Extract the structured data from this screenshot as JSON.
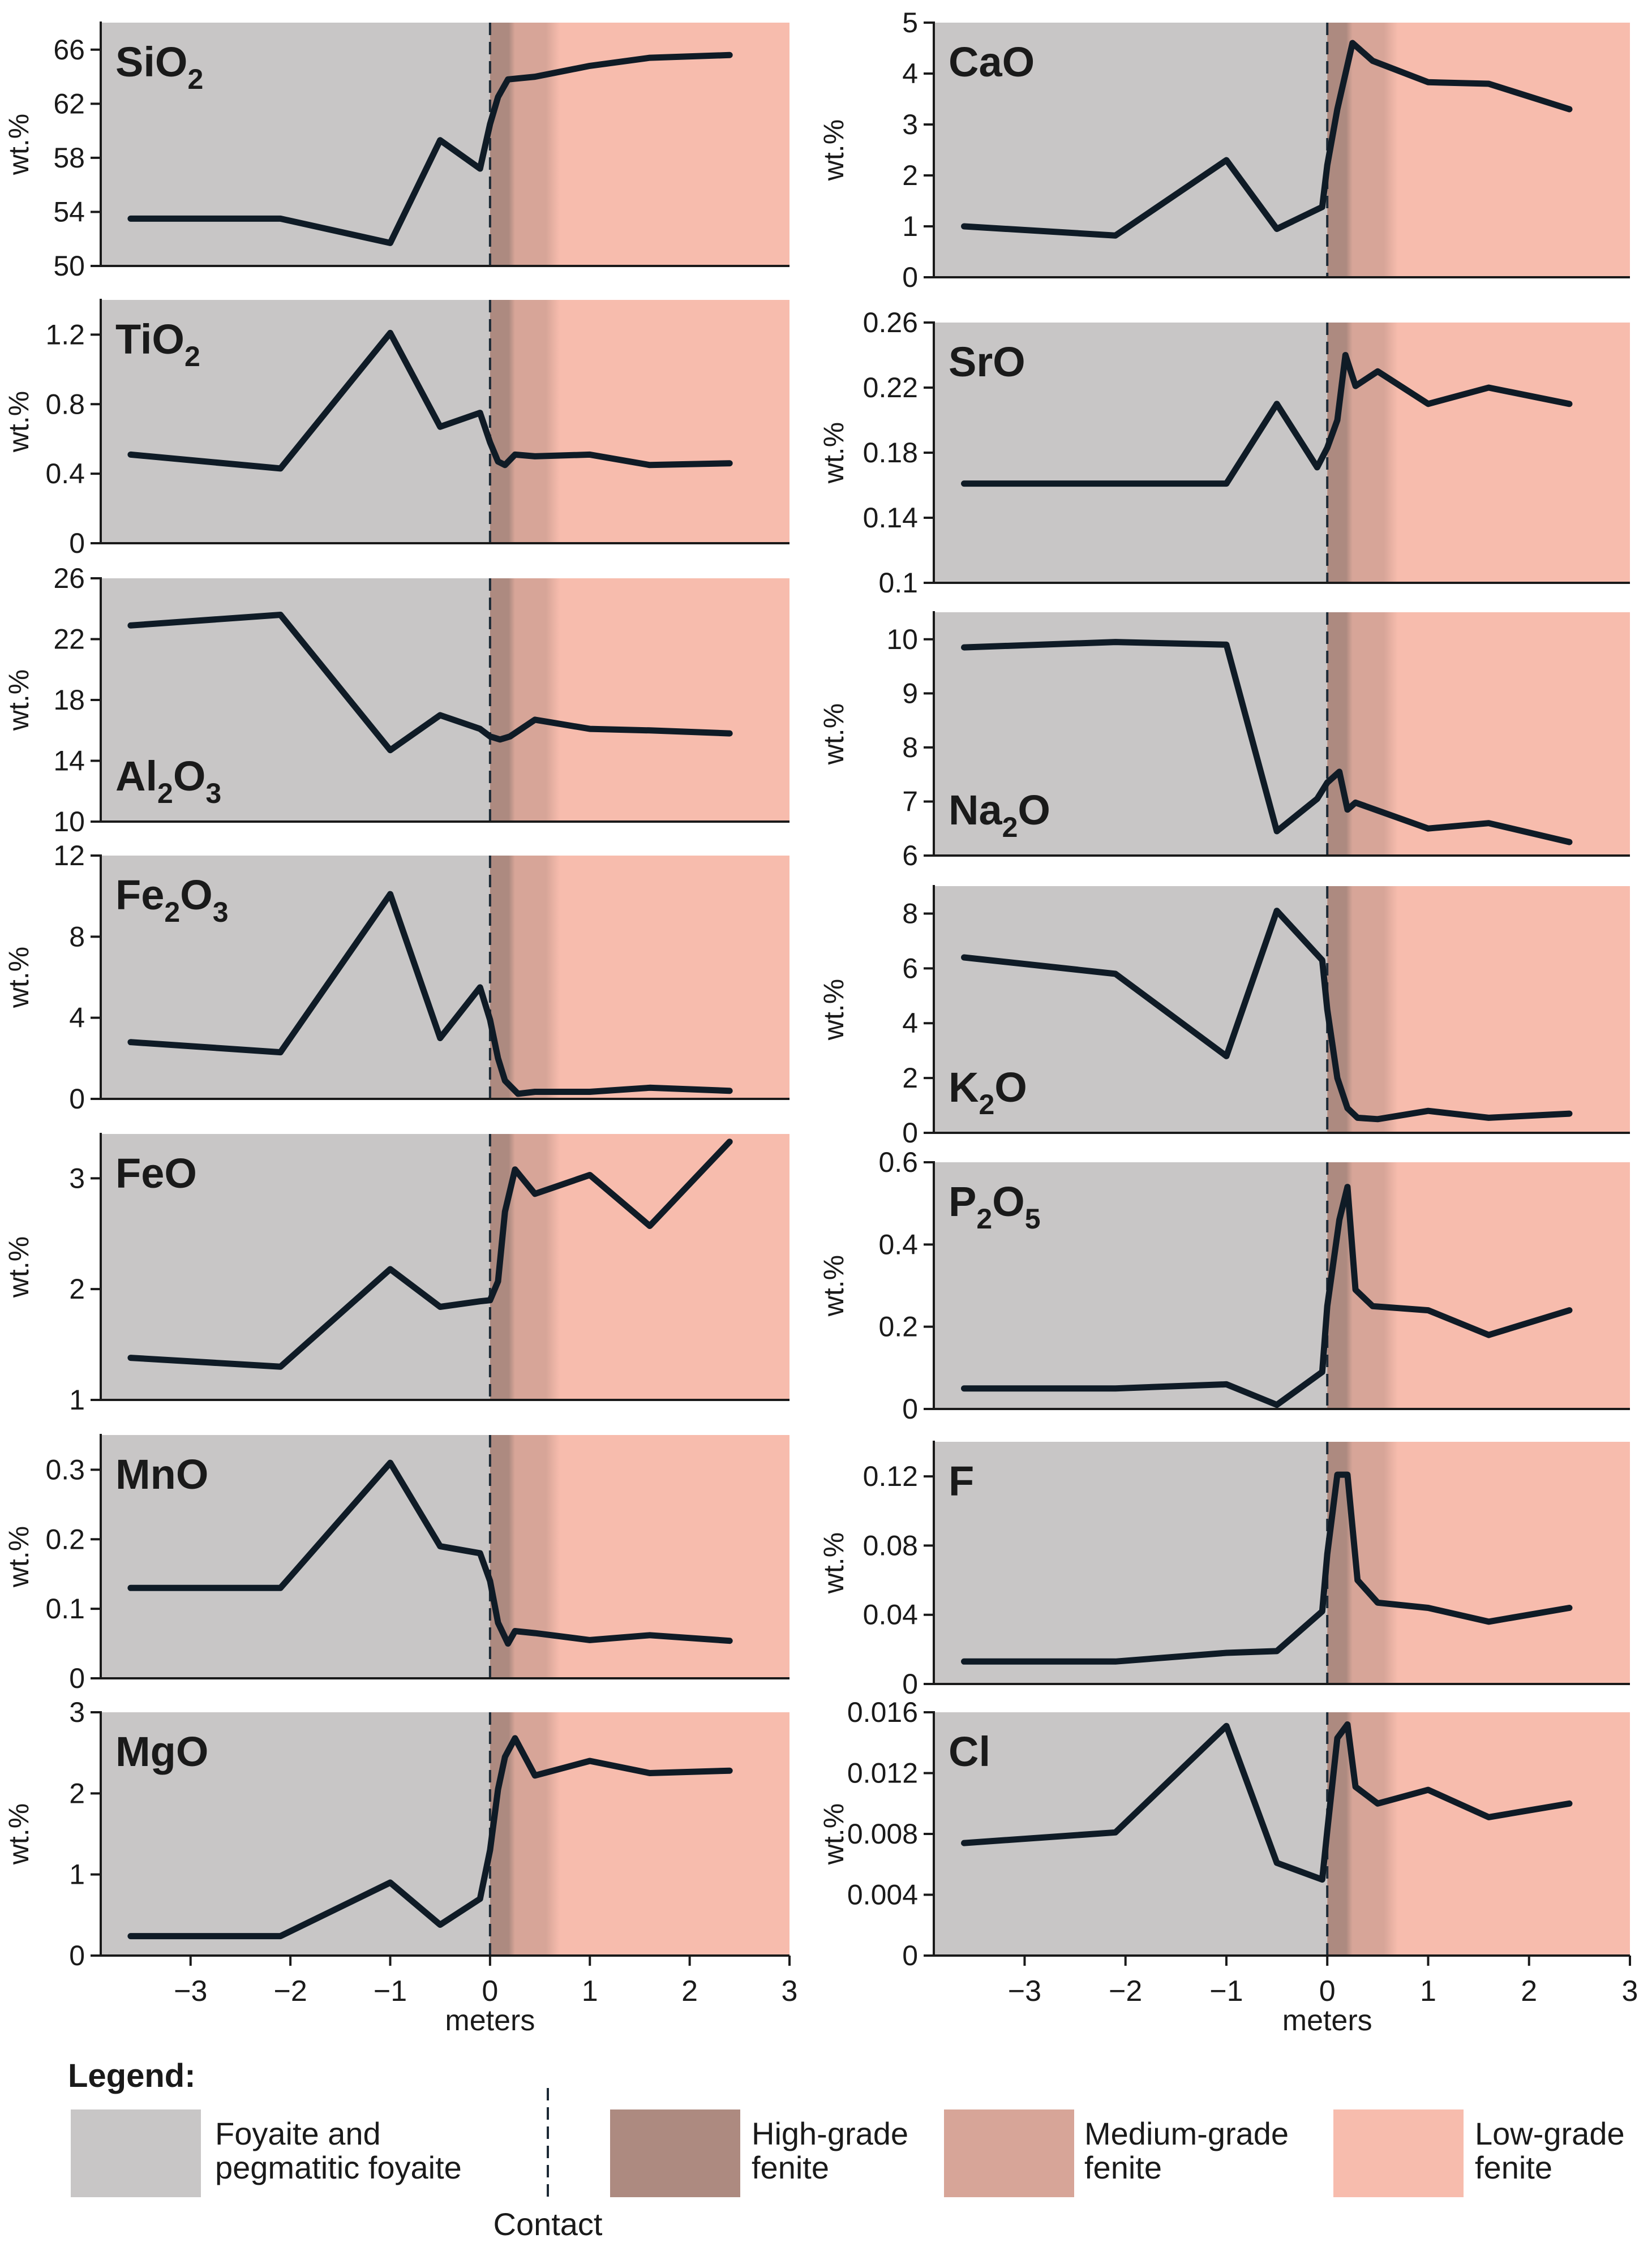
{
  "colors": {
    "foyaite": "#c8c6c6",
    "high_grade": "#ad8a80",
    "medium_grade": "#d7a598",
    "low_grade": "#f7bcad",
    "line": "#0f1b26",
    "axis": "#1a1a1a"
  },
  "zones": {
    "contact": 0,
    "high_grade_end": 0.25,
    "medium_grade_end": 0.7
  },
  "x_axis": {
    "label": "meters",
    "range": [
      -3.9,
      3.0
    ],
    "ticks": [
      -3,
      -2,
      -1,
      0,
      1,
      2,
      3
    ],
    "tick_labels": [
      "−3",
      "−2",
      "−1",
      "0",
      "1",
      "2",
      "3"
    ]
  },
  "ylabel": "wt.%",
  "legend": {
    "title": "Legend:",
    "items": [
      {
        "key": "foyaite",
        "line1": "Foyaite and",
        "line2": "pegmatitic foyaite"
      },
      {
        "key": "contact",
        "line1": "Contact",
        "line2": ""
      },
      {
        "key": "high_grade",
        "line1": "High-grade",
        "line2": "fenite"
      },
      {
        "key": "medium_grade",
        "line1": "Medium-grade",
        "line2": "fenite"
      },
      {
        "key": "low_grade",
        "line1": "Low-grade",
        "line2": "fenite"
      }
    ]
  },
  "chart_data": [
    {
      "type": "line",
      "id": "sio2",
      "title": "SiO₂",
      "title_main": "SiO",
      "title_sub": "2",
      "title_rest": "",
      "title_pos": "top",
      "ylabel": "wt.%",
      "ylim": [
        50,
        68
      ],
      "yticks": [
        50,
        54,
        58,
        62,
        66
      ],
      "ytick_labels": [
        "50",
        "54",
        "58",
        "62",
        "66"
      ],
      "x": [
        -3.6,
        -2.1,
        -1.0,
        -0.5,
        -0.1,
        0.0,
        0.08,
        0.18,
        0.45,
        1.0,
        1.6,
        2.4
      ],
      "y": [
        53.5,
        53.5,
        51.7,
        59.3,
        57.2,
        60.5,
        62.5,
        63.8,
        64.0,
        64.8,
        65.4,
        65.6
      ]
    },
    {
      "type": "line",
      "id": "tio2",
      "title": "TiO₂",
      "title_main": "TiO",
      "title_sub": "2",
      "title_rest": "",
      "title_pos": "top",
      "ylabel": "wt.%",
      "ylim": [
        0,
        1.4
      ],
      "yticks": [
        0,
        0.4,
        0.8,
        1.2
      ],
      "ytick_labels": [
        "0",
        "0.4",
        "0.8",
        "1.2"
      ],
      "x": [
        -3.6,
        -2.1,
        -1.0,
        -0.5,
        -0.1,
        0.0,
        0.08,
        0.15,
        0.25,
        0.45,
        1.0,
        1.6,
        2.4
      ],
      "y": [
        0.51,
        0.43,
        1.21,
        0.67,
        0.75,
        0.58,
        0.47,
        0.45,
        0.51,
        0.5,
        0.51,
        0.45,
        0.46
      ]
    },
    {
      "type": "line",
      "id": "al2o3",
      "title": "Al₂O₃",
      "title_main": "Al",
      "title_sub": "2",
      "title_rest": "O",
      "title_sub2": "3",
      "title_pos": "bottom",
      "ylabel": "wt.%",
      "ylim": [
        10,
        26
      ],
      "yticks": [
        10,
        14,
        18,
        22,
        26
      ],
      "ytick_labels": [
        "10",
        "14",
        "18",
        "22",
        "26"
      ],
      "x": [
        -3.6,
        -2.1,
        -1.0,
        -0.5,
        -0.1,
        0.0,
        0.1,
        0.2,
        0.45,
        1.0,
        1.6,
        2.4
      ],
      "y": [
        22.9,
        23.6,
        14.7,
        17.0,
        16.1,
        15.6,
        15.4,
        15.6,
        16.7,
        16.1,
        16.0,
        15.8
      ]
    },
    {
      "type": "line",
      "id": "fe2o3",
      "title": "Fe₂O₃",
      "title_main": "Fe",
      "title_sub": "2",
      "title_rest": "O",
      "title_sub2": "3",
      "title_pos": "top",
      "ylabel": "wt.%",
      "ylim": [
        0,
        12
      ],
      "yticks": [
        0,
        4,
        8,
        12
      ],
      "ytick_labels": [
        "0",
        "4",
        "8",
        "12"
      ],
      "x": [
        -3.6,
        -2.1,
        -1.0,
        -0.5,
        -0.1,
        0.0,
        0.08,
        0.15,
        0.28,
        0.45,
        1.0,
        1.6,
        2.4
      ],
      "y": [
        2.8,
        2.3,
        10.1,
        3.0,
        5.5,
        3.9,
        2.0,
        0.9,
        0.25,
        0.35,
        0.35,
        0.55,
        0.4
      ]
    },
    {
      "type": "line",
      "id": "feo",
      "title": "FeO",
      "title_main": "FeO",
      "title_sub": "",
      "title_rest": "",
      "title_pos": "top",
      "ylabel": "wt.%",
      "ylim": [
        1,
        3.4
      ],
      "yticks": [
        1,
        2,
        3
      ],
      "ytick_labels": [
        "1",
        "2",
        "3"
      ],
      "x": [
        -3.6,
        -2.1,
        -1.0,
        -0.5,
        -0.1,
        0.0,
        0.08,
        0.15,
        0.25,
        0.45,
        1.0,
        1.6,
        2.4
      ],
      "y": [
        1.38,
        1.3,
        2.18,
        1.84,
        1.89,
        1.9,
        2.07,
        2.7,
        3.08,
        2.86,
        3.03,
        2.57,
        3.33
      ]
    },
    {
      "type": "line",
      "id": "mno",
      "title": "MnO",
      "title_main": "MnO",
      "title_sub": "",
      "title_rest": "",
      "title_pos": "top",
      "ylabel": "wt.%",
      "ylim": [
        0,
        0.35
      ],
      "yticks": [
        0,
        0.1,
        0.2,
        0.3
      ],
      "ytick_labels": [
        "0",
        "0.1",
        "0.2",
        "0.3"
      ],
      "x": [
        -3.6,
        -2.1,
        -1.0,
        -0.5,
        -0.1,
        0.0,
        0.08,
        0.18,
        0.25,
        0.45,
        1.0,
        1.6,
        2.4
      ],
      "y": [
        0.13,
        0.13,
        0.31,
        0.19,
        0.18,
        0.14,
        0.08,
        0.05,
        0.068,
        0.065,
        0.055,
        0.062,
        0.054
      ]
    },
    {
      "type": "line",
      "id": "mgo",
      "title": "MgO",
      "title_main": "MgO",
      "title_sub": "",
      "title_rest": "",
      "title_pos": "top",
      "ylabel": "wt.%",
      "ylim": [
        0,
        3
      ],
      "yticks": [
        0,
        1,
        2,
        3
      ],
      "ytick_labels": [
        "0",
        "1",
        "2",
        "3"
      ],
      "x": [
        -3.6,
        -2.1,
        -1.0,
        -0.5,
        -0.1,
        0.0,
        0.08,
        0.15,
        0.25,
        0.45,
        1.0,
        1.6,
        2.4
      ],
      "y": [
        0.24,
        0.24,
        0.9,
        0.38,
        0.7,
        1.3,
        2.05,
        2.45,
        2.68,
        2.22,
        2.4,
        2.25,
        2.28
      ]
    },
    {
      "type": "line",
      "id": "cao",
      "title": "CaO",
      "title_main": "CaO",
      "title_sub": "",
      "title_rest": "",
      "title_pos": "top",
      "ylabel": "wt.%",
      "ylim": [
        0,
        5
      ],
      "yticks": [
        0,
        1,
        2,
        3,
        4,
        5
      ],
      "ytick_labels": [
        "0",
        "1",
        "2",
        "3",
        "4",
        "5"
      ],
      "x": [
        -3.6,
        -2.1,
        -1.0,
        -0.5,
        -0.05,
        0.0,
        0.1,
        0.25,
        0.45,
        1.0,
        1.6,
        2.4
      ],
      "y": [
        1.0,
        0.82,
        2.3,
        0.95,
        1.38,
        2.2,
        3.3,
        4.6,
        4.25,
        3.83,
        3.8,
        3.3
      ]
    },
    {
      "type": "line",
      "id": "sro",
      "title": "SrO",
      "title_main": "SrO",
      "title_sub": "",
      "title_rest": "",
      "title_pos": "top",
      "ylabel": "wt.%",
      "ylim": [
        0.1,
        0.26
      ],
      "yticks": [
        0.1,
        0.14,
        0.18,
        0.22,
        0.26
      ],
      "ytick_labels": [
        "0.1",
        "0.14",
        "0.18",
        "0.22",
        "0.26"
      ],
      "x": [
        -3.6,
        -2.1,
        -1.0,
        -0.5,
        -0.1,
        0.0,
        0.1,
        0.18,
        0.28,
        0.5,
        1.0,
        1.6,
        2.4
      ],
      "y": [
        0.161,
        0.161,
        0.161,
        0.21,
        0.171,
        0.183,
        0.2,
        0.24,
        0.221,
        0.23,
        0.21,
        0.22,
        0.21
      ]
    },
    {
      "type": "line",
      "id": "na2o",
      "title": "Na₂O",
      "title_main": "Na",
      "title_sub": "2",
      "title_rest": "O",
      "title_pos": "bottom",
      "ylabel": "wt.%",
      "ylim": [
        6,
        10.5
      ],
      "yticks": [
        6,
        7,
        8,
        9,
        10
      ],
      "ytick_labels": [
        "6",
        "7",
        "8",
        "9",
        "10"
      ],
      "x": [
        -3.6,
        -2.1,
        -1.0,
        -0.5,
        -0.1,
        0.0,
        0.12,
        0.2,
        0.28,
        1.0,
        1.6,
        2.4
      ],
      "y": [
        9.85,
        9.95,
        9.9,
        6.45,
        7.05,
        7.35,
        7.55,
        6.85,
        6.98,
        6.5,
        6.6,
        6.25
      ]
    },
    {
      "type": "line",
      "id": "k2o",
      "title": "K₂O",
      "title_main": "K",
      "title_sub": "2",
      "title_rest": "O",
      "title_pos": "bottom",
      "ylabel": "wt.%",
      "ylim": [
        0,
        9
      ],
      "yticks": [
        0,
        2,
        4,
        6,
        8
      ],
      "ytick_labels": [
        "0",
        "2",
        "4",
        "6",
        "8"
      ],
      "x": [
        -3.6,
        -2.1,
        -1.0,
        -0.5,
        -0.05,
        0.0,
        0.1,
        0.2,
        0.3,
        0.5,
        1.0,
        1.6,
        2.4
      ],
      "y": [
        6.4,
        5.8,
        2.8,
        8.1,
        6.3,
        4.5,
        2.0,
        0.9,
        0.55,
        0.5,
        0.8,
        0.55,
        0.7
      ]
    },
    {
      "type": "line",
      "id": "p2o5",
      "title": "P₂O₅",
      "title_main": "P",
      "title_sub": "2",
      "title_rest": "O",
      "title_sub2": "5",
      "title_pos": "top",
      "ylabel": "wt.%",
      "ylim": [
        0,
        0.6
      ],
      "yticks": [
        0,
        0.2,
        0.4,
        0.6
      ],
      "ytick_labels": [
        "0",
        "0.2",
        "0.4",
        "0.6"
      ],
      "x": [
        -3.6,
        -2.1,
        -1.0,
        -0.5,
        -0.05,
        0.0,
        0.12,
        0.2,
        0.28,
        0.45,
        1.0,
        1.6,
        2.4
      ],
      "y": [
        0.05,
        0.05,
        0.06,
        0.01,
        0.09,
        0.25,
        0.46,
        0.54,
        0.29,
        0.25,
        0.24,
        0.18,
        0.24
      ]
    },
    {
      "type": "line",
      "id": "f",
      "title": "F",
      "title_main": "F",
      "title_sub": "",
      "title_rest": "",
      "title_pos": "top",
      "ylabel": "wt.%",
      "ylim": [
        0,
        0.14
      ],
      "yticks": [
        0,
        0.04,
        0.08,
        0.12
      ],
      "ytick_labels": [
        "0",
        "0.04",
        "0.08",
        "0.12"
      ],
      "x": [
        -3.6,
        -2.1,
        -1.0,
        -0.5,
        -0.05,
        0.0,
        0.1,
        0.2,
        0.3,
        0.5,
        1.0,
        1.6,
        2.4
      ],
      "y": [
        0.013,
        0.013,
        0.018,
        0.019,
        0.042,
        0.075,
        0.121,
        0.121,
        0.06,
        0.047,
        0.044,
        0.036,
        0.044
      ]
    },
    {
      "type": "line",
      "id": "cl",
      "title": "Cl",
      "title_main": "Cl",
      "title_sub": "",
      "title_rest": "",
      "title_pos": "top",
      "ylabel": "wt.%",
      "ylim": [
        0,
        0.016
      ],
      "yticks": [
        0,
        0.004,
        0.008,
        0.012,
        0.016
      ],
      "ytick_labels": [
        "0",
        "0.004",
        "0.008",
        "0.012",
        "0.016"
      ],
      "x": [
        -3.6,
        -2.1,
        -1.0,
        -0.5,
        -0.05,
        0.0,
        0.1,
        0.2,
        0.28,
        0.5,
        1.0,
        1.6,
        2.4
      ],
      "y": [
        0.0074,
        0.0081,
        0.0151,
        0.0061,
        0.005,
        0.0082,
        0.0143,
        0.0152,
        0.0111,
        0.01,
        0.0109,
        0.0091,
        0.01
      ]
    }
  ]
}
